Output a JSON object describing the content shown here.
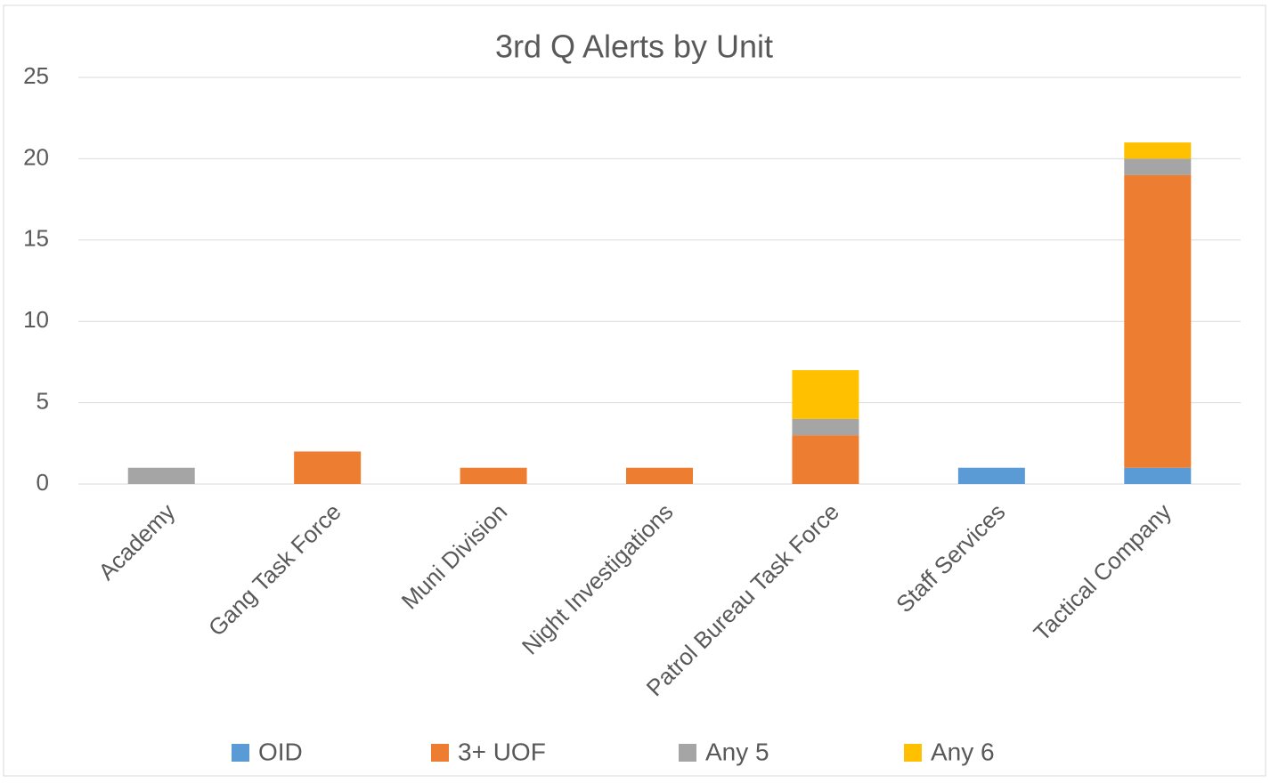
{
  "chart_data": {
    "type": "stacked_bar",
    "title": "3rd Q Alerts by Unit",
    "categories": [
      "Academy",
      "Gang Task Force",
      "Muni Division",
      "Night Investigations",
      "Patrol Bureau Task Force",
      "Staff Services",
      "Tactical Company"
    ],
    "series": [
      {
        "name": "OID",
        "color": "#5b9bd5",
        "values": [
          0,
          0,
          0,
          0,
          0,
          1,
          1
        ]
      },
      {
        "name": "3+ UOF",
        "color": "#ed7d31",
        "values": [
          0,
          2,
          1,
          1,
          3,
          0,
          18
        ]
      },
      {
        "name": "Any 5",
        "color": "#a5a5a5",
        "values": [
          1,
          0,
          0,
          0,
          1,
          0,
          1
        ]
      },
      {
        "name": "Any 6",
        "color": "#ffc000",
        "values": [
          0,
          0,
          0,
          0,
          3,
          0,
          1
        ]
      }
    ],
    "ylim": [
      0,
      25
    ],
    "yticks": [
      0,
      5,
      10,
      15,
      20,
      25
    ],
    "grid": true,
    "legend": "bottom"
  }
}
